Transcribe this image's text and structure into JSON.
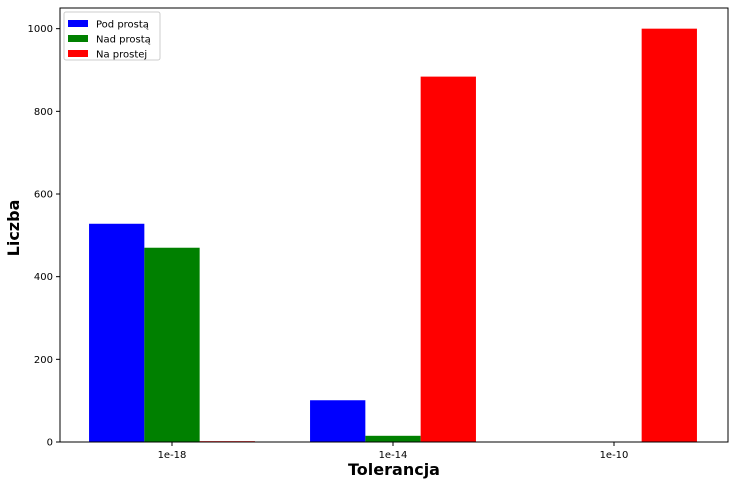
{
  "chart_data": {
    "type": "bar",
    "title": "",
    "xlabel": "Tolerancja",
    "ylabel": "Liczba",
    "categories": [
      "1e-18",
      "1e-14",
      "1e-10"
    ],
    "series": [
      {
        "name": "Pod prostą",
        "values": [
          528,
          101,
          0
        ],
        "color": "#0000ff"
      },
      {
        "name": "Nad prostą",
        "values": [
          470,
          15,
          0
        ],
        "color": "#008000"
      },
      {
        "name": "Na prostej",
        "values": [
          2,
          884,
          1000
        ],
        "color": "#ff0000"
      }
    ],
    "yticks": [
      0,
      200,
      400,
      600,
      800,
      1000
    ],
    "ylim": [
      0,
      1050
    ],
    "grid": false,
    "legend_position": "top-left"
  }
}
